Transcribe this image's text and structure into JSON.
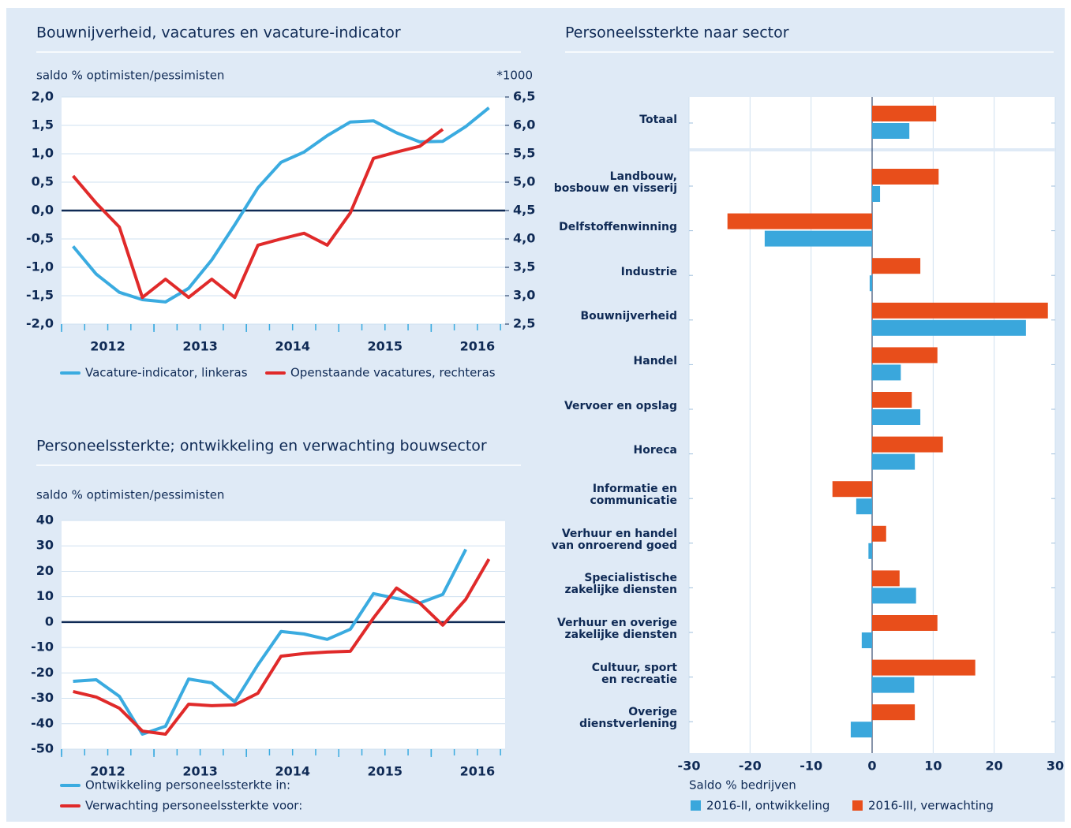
{
  "chart_data": [
    {
      "type": "line",
      "title": "Bouwnijverheid, vacatures en vacature-indicator",
      "y_label": "saldo % optimisten/pessimisten",
      "y2_label": "*1000",
      "x": [
        2012.125,
        2012.375,
        2012.625,
        2012.875,
        2013.125,
        2013.375,
        2013.625,
        2013.875,
        2014.125,
        2014.375,
        2014.625,
        2014.875,
        2015.125,
        2015.375,
        2015.625,
        2015.875,
        2016.125,
        2016.375,
        2016.625
      ],
      "xlim": [
        2012,
        2016.8
      ],
      "xticks": [
        2012,
        2013,
        2014,
        2015,
        2016
      ],
      "ylim": [
        -2,
        2
      ],
      "yticks": [
        {
          "value": -2,
          "label": "-2,0"
        },
        {
          "value": -1.5,
          "label": "-1,5"
        },
        {
          "value": -1,
          "label": "-1,0"
        },
        {
          "value": -0.5,
          "label": "-0,5"
        },
        {
          "value": 0,
          "label": "0,0"
        },
        {
          "value": 0.5,
          "label": "0,5"
        },
        {
          "value": 1,
          "label": "1,0"
        },
        {
          "value": 1.5,
          "label": "1,5"
        },
        {
          "value": 2,
          "label": "2,0"
        }
      ],
      "y2lim": [
        2.5,
        6.5
      ],
      "y2ticks": [
        {
          "value": 2.5,
          "label": "2,5"
        },
        {
          "value": 3,
          "label": "3,0"
        },
        {
          "value": 3.5,
          "label": "3,5"
        },
        {
          "value": 4,
          "label": "4,0"
        },
        {
          "value": 4.5,
          "label": "4,5"
        },
        {
          "value": 5,
          "label": "5,0"
        },
        {
          "value": 5.5,
          "label": "5,5"
        },
        {
          "value": 6,
          "label": "6,0"
        },
        {
          "value": 6.5,
          "label": "6,5"
        }
      ],
      "grid": true,
      "legend": "bottom",
      "series": [
        {
          "name": "Vacature-indicator, linkeras",
          "color": "#3aabe0",
          "values": [
            -0.63,
            -1.12,
            -1.44,
            -1.57,
            -1.61,
            -1.37,
            -0.87,
            -0.25,
            0.4,
            0.85,
            1.03,
            1.32,
            1.56,
            1.58,
            1.37,
            1.21,
            1.22,
            1.48,
            1.81
          ]
        },
        {
          "name": "Openstaande vacatures, rechteras",
          "color": "#e02a2a",
          "axis": "y2",
          "values": [
            5.11,
            4.63,
            4.21,
            2.97,
            3.29,
            2.97,
            3.29,
            2.97,
            3.89,
            4.0,
            4.1,
            3.89,
            4.46,
            5.42,
            5.53,
            5.63,
            5.93,
            null,
            null
          ]
        }
      ]
    },
    {
      "type": "line",
      "title": "Personeelssterkte; ontwikkeling en verwachting bouwsector",
      "y_label": "saldo % optimisten/pessimisten",
      "x": [
        2012.125,
        2012.375,
        2012.625,
        2012.875,
        2013.125,
        2013.375,
        2013.625,
        2013.875,
        2014.125,
        2014.375,
        2014.625,
        2014.875,
        2015.125,
        2015.375,
        2015.625,
        2015.875,
        2016.125,
        2016.375,
        2016.625
      ],
      "xlim": [
        2012,
        2016.8
      ],
      "xticks": [
        2012,
        2013,
        2014,
        2015,
        2016
      ],
      "ylim": [
        -50,
        40
      ],
      "yticks": [
        -50,
        -40,
        -30,
        -20,
        -10,
        0,
        10,
        20,
        30,
        40
      ],
      "grid": true,
      "legend": "bottom",
      "series": [
        {
          "name": "Ontwikkeling personeelssterkte in:",
          "color": "#3aabe0",
          "values": [
            -23.3,
            -22.7,
            -29.2,
            -44.1,
            -41,
            -22.4,
            -23.9,
            -31.4,
            -16.8,
            -3.7,
            -4.7,
            -6.8,
            -2.8,
            11.2,
            9.3,
            7.5,
            10.9,
            28.6,
            null
          ]
        },
        {
          "name": "Verwachting personeelssterkte voor:",
          "color": "#e02a2a",
          "values": [
            -27.3,
            -29.5,
            -33.9,
            -42.9,
            -44.1,
            -32.3,
            -32.9,
            -32.6,
            -28,
            -13.4,
            -12.4,
            -11.8,
            -11.5,
            1.6,
            13.4,
            7.5,
            -1.2,
            9,
            24.8
          ]
        }
      ]
    },
    {
      "type": "hbar",
      "title": "Personeelssterkte naar sector",
      "x_label": "Saldo % bedrijven",
      "categories": [
        "Totaal",
        "Landbouw,\nbosbouw en visserij",
        "Delfstoffenwinning",
        "Industrie",
        "Bouwnijverheid",
        "Handel",
        "Vervoer en opslag",
        "Horeca",
        "Informatie en\ncommunicatie",
        "Verhuur en handel\nvan onroerend goed",
        "Specialistische\nzakelijke diensten",
        "Verhuur en overige\nzakelijke diensten",
        "Cultuur, sport\nen recreatie",
        "Overige\ndienstverlening"
      ],
      "xlim": [
        -30,
        30
      ],
      "xticks": [
        -30,
        -20,
        -10,
        0,
        10,
        20,
        30
      ],
      "grid": true,
      "legend": "bottom",
      "series": [
        {
          "name": "2016-II, ontwikkeling",
          "color": "#3aa7dc",
          "values": [
            6.1,
            1.3,
            -17.6,
            -0.4,
            25.2,
            4.7,
            7.9,
            7.0,
            -2.6,
            -0.6,
            7.2,
            -1.7,
            6.9,
            -3.5
          ]
        },
        {
          "name": "2016-III, verwachting",
          "color": "#e84e1b",
          "values": [
            10.5,
            10.9,
            -23.7,
            7.9,
            28.8,
            10.7,
            6.5,
            11.6,
            -6.5,
            2.3,
            4.5,
            10.7,
            16.9,
            7.0
          ]
        }
      ]
    }
  ]
}
